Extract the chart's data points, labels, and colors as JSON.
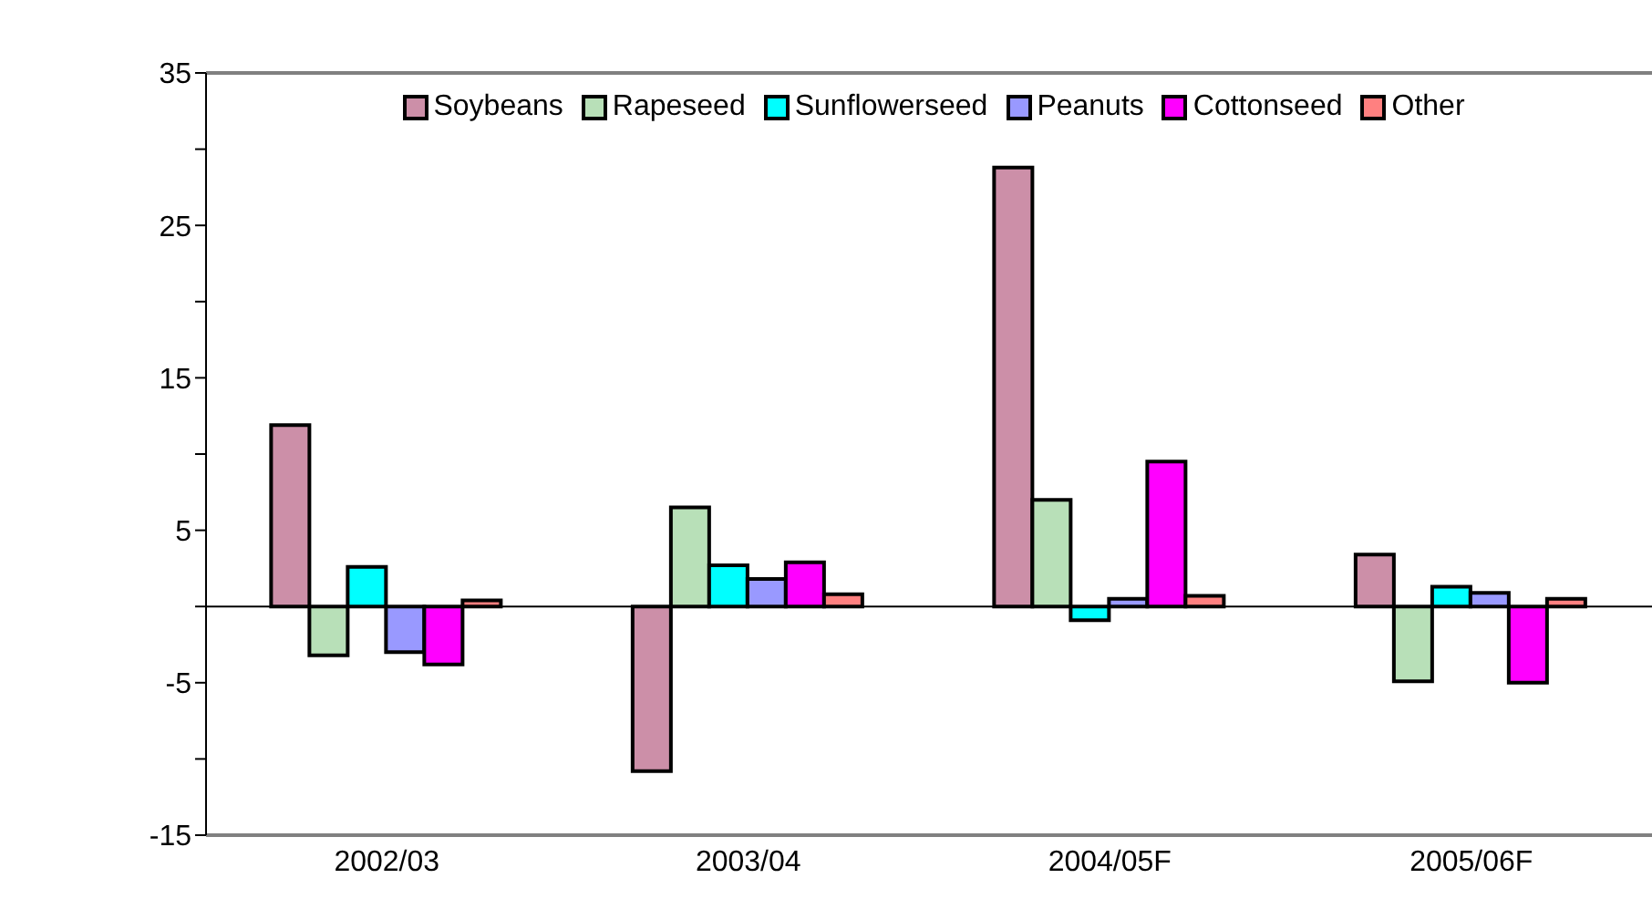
{
  "chart_data": {
    "type": "bar",
    "categories": [
      "2002/03",
      "2003/04",
      "2004/05F",
      "2005/06F"
    ],
    "series": [
      {
        "name": "Soybeans",
        "color": "#cc8fa8",
        "values": [
          11.9,
          -10.8,
          28.8,
          3.4
        ]
      },
      {
        "name": "Rapeseed",
        "color": "#b8e0b8",
        "values": [
          -3.2,
          6.5,
          7.0,
          -4.9
        ]
      },
      {
        "name": "Sunflowerseed",
        "color": "#00ffff",
        "values": [
          2.6,
          2.7,
          -0.9,
          1.3
        ]
      },
      {
        "name": "Peanuts",
        "color": "#9999ff",
        "values": [
          -3.0,
          1.8,
          0.5,
          0.9
        ]
      },
      {
        "name": "Cottonseed",
        "color": "#ff00ff",
        "values": [
          -3.8,
          2.9,
          9.5,
          -5.0
        ]
      },
      {
        "name": "Other",
        "color": "#ff8080",
        "values": [
          0.4,
          0.8,
          0.7,
          0.5
        ]
      }
    ],
    "ylim": [
      -15,
      35
    ],
    "yticks": [
      -15,
      {
        "value": -10,
        "label": null
      },
      -5,
      {
        "value": 0,
        "label": null
      },
      5,
      {
        "value": 10,
        "label": null
      },
      15,
      {
        "value": 20,
        "label": null
      },
      25,
      {
        "value": 30,
        "label": null
      },
      35
    ],
    "legend": "top"
  }
}
